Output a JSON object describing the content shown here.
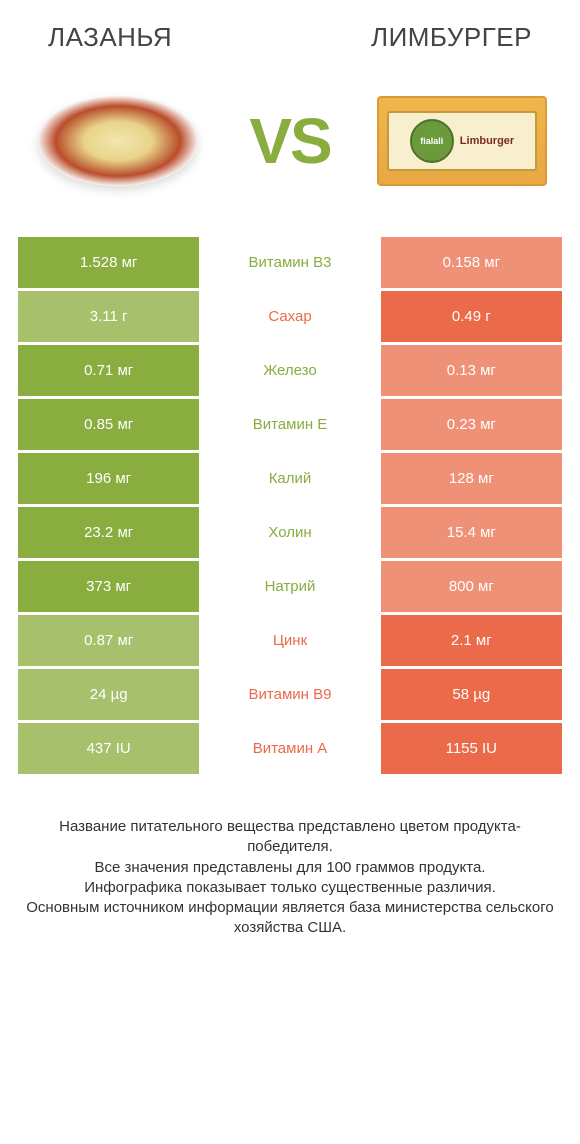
{
  "colors": {
    "green": "#8aad3f",
    "green_dim": "#a7c06c",
    "orange": "#ea6a49",
    "orange_dim": "#ef9176",
    "white": "#ffffff",
    "text_green": "#8aad3f",
    "text_orange": "#ea6a49"
  },
  "header": {
    "left_title": "Лазанья",
    "right_title": "Лимбургер",
    "vs_text": "VS"
  },
  "rows": [
    {
      "nutrient": "Витамин B3",
      "left": "1.528 мг",
      "right": "0.158 мг",
      "winner": "left"
    },
    {
      "nutrient": "Сахар",
      "left": "3.11 г",
      "right": "0.49 г",
      "winner": "right"
    },
    {
      "nutrient": "Железо",
      "left": "0.71 мг",
      "right": "0.13 мг",
      "winner": "left"
    },
    {
      "nutrient": "Витамин E",
      "left": "0.85 мг",
      "right": "0.23 мг",
      "winner": "left"
    },
    {
      "nutrient": "Калий",
      "left": "196 мг",
      "right": "128 мг",
      "winner": "left"
    },
    {
      "nutrient": "Холин",
      "left": "23.2 мг",
      "right": "15.4 мг",
      "winner": "left"
    },
    {
      "nutrient": "Натрий",
      "left": "373 мг",
      "right": "800 мг",
      "winner": "left"
    },
    {
      "nutrient": "Цинк",
      "left": "0.87 мг",
      "right": "2.1 мг",
      "winner": "right"
    },
    {
      "nutrient": "Витамин B9",
      "left": "24 µg",
      "right": "58 µg",
      "winner": "right"
    },
    {
      "nutrient": "Витамин A",
      "left": "437 IU",
      "right": "1155 IU",
      "winner": "right"
    }
  ],
  "footer_lines": [
    "Название питательного вещества представлено цветом продукта-победителя.",
    "Все значения представлены для 100 граммов продукта.",
    "Инфографика показывает только существенные различия.",
    "Основным источником информации является база министерства сельского хозяйства США."
  ]
}
